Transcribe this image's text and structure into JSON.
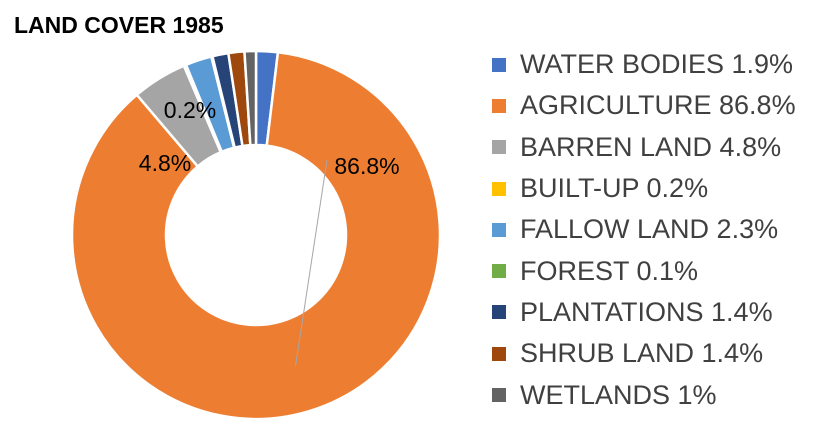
{
  "chart_data": {
    "type": "pie",
    "variant": "donut",
    "title": "LAND COVER 1985",
    "legend_position": "right",
    "slices": [
      {
        "legend": "WATER BODIES 1.9%",
        "value": 1.9,
        "color": "#4472c4",
        "data_label": ""
      },
      {
        "legend": "AGRICULTURE 86.8%",
        "value": 86.8,
        "color": "#ed7d31",
        "data_label": "86.8%"
      },
      {
        "legend": "BARREN LAND 4.8%",
        "value": 4.8,
        "color": "#a5a5a5",
        "data_label": "4.8%"
      },
      {
        "legend": "BUILT-UP 0.2%",
        "value": 0.2,
        "color": "#ffc000",
        "data_label": "0.2%"
      },
      {
        "legend": "FALLOW LAND 2.3%",
        "value": 2.3,
        "color": "#5b9bd5",
        "data_label": ""
      },
      {
        "legend": "FOREST 0.1%",
        "value": 0.1,
        "color": "#70ad47",
        "data_label": ""
      },
      {
        "legend": "PLANTATIONS 1.4%",
        "value": 1.4,
        "color": "#264478",
        "data_label": ""
      },
      {
        "legend": "SHRUB LAND 1.4%",
        "value": 1.4,
        "color": "#9e480e",
        "data_label": ""
      },
      {
        "legend": "WETLANDS 1%",
        "value": 1.0,
        "color": "#636363",
        "data_label": ""
      }
    ]
  }
}
